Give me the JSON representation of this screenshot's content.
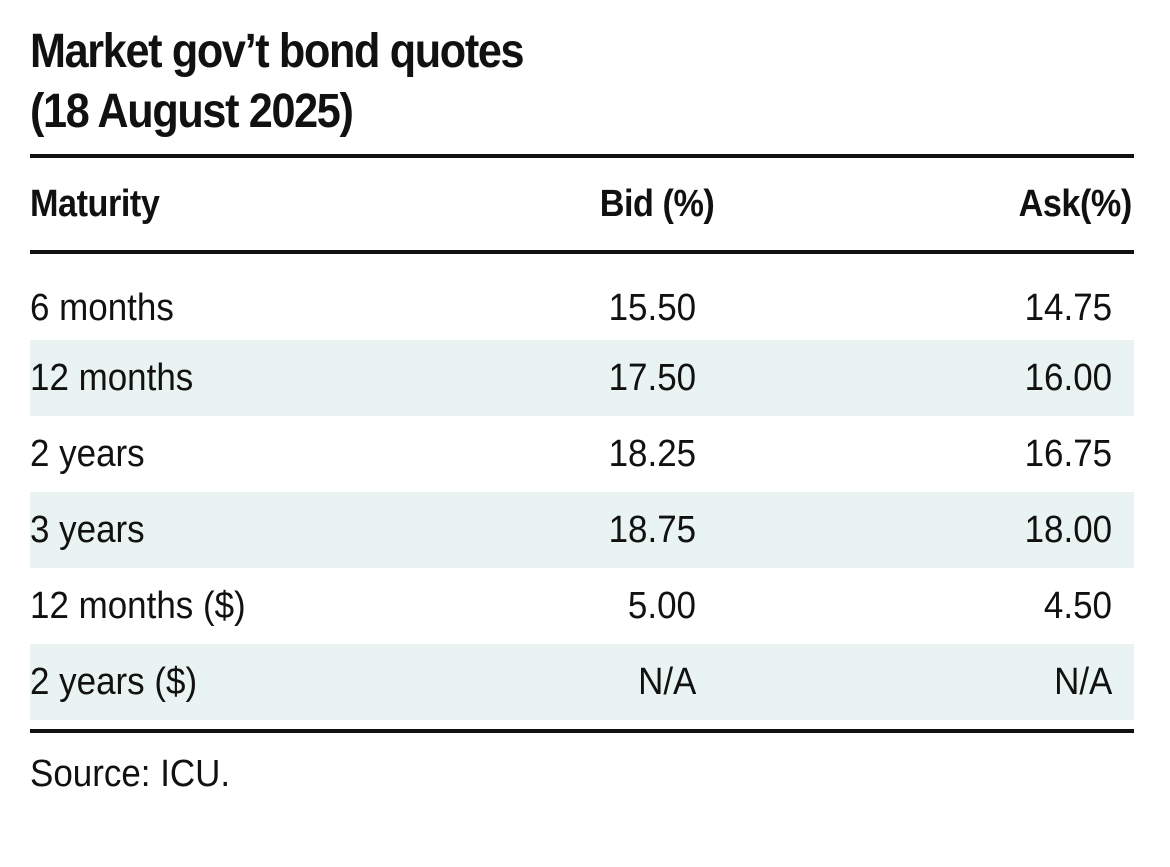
{
  "title": {
    "line1": "Market gov’t bond quotes",
    "line2": "(18 August 2025)"
  },
  "table": {
    "headers": [
      "Maturity",
      "Bid (%)",
      "Ask(%)"
    ],
    "rows": [
      {
        "maturity": "6 months",
        "bid": "15.50",
        "ask": "14.75"
      },
      {
        "maturity": "12 months",
        "bid": "17.50",
        "ask": "16.00"
      },
      {
        "maturity": "2 years",
        "bid": "18.25",
        "ask": "16.75"
      },
      {
        "maturity": "3 years",
        "bid": "18.75",
        "ask": "18.00"
      },
      {
        "maturity": "12 months ($)",
        "bid": "5.00",
        "ask": "4.50"
      },
      {
        "maturity": "2 years ($)",
        "bid": "N/A",
        "ask": "N/A"
      }
    ]
  },
  "source": "Source: ICU.",
  "colors": {
    "shaded_row": "#e9f4f2",
    "rule": "#111111",
    "text": "#111111"
  }
}
